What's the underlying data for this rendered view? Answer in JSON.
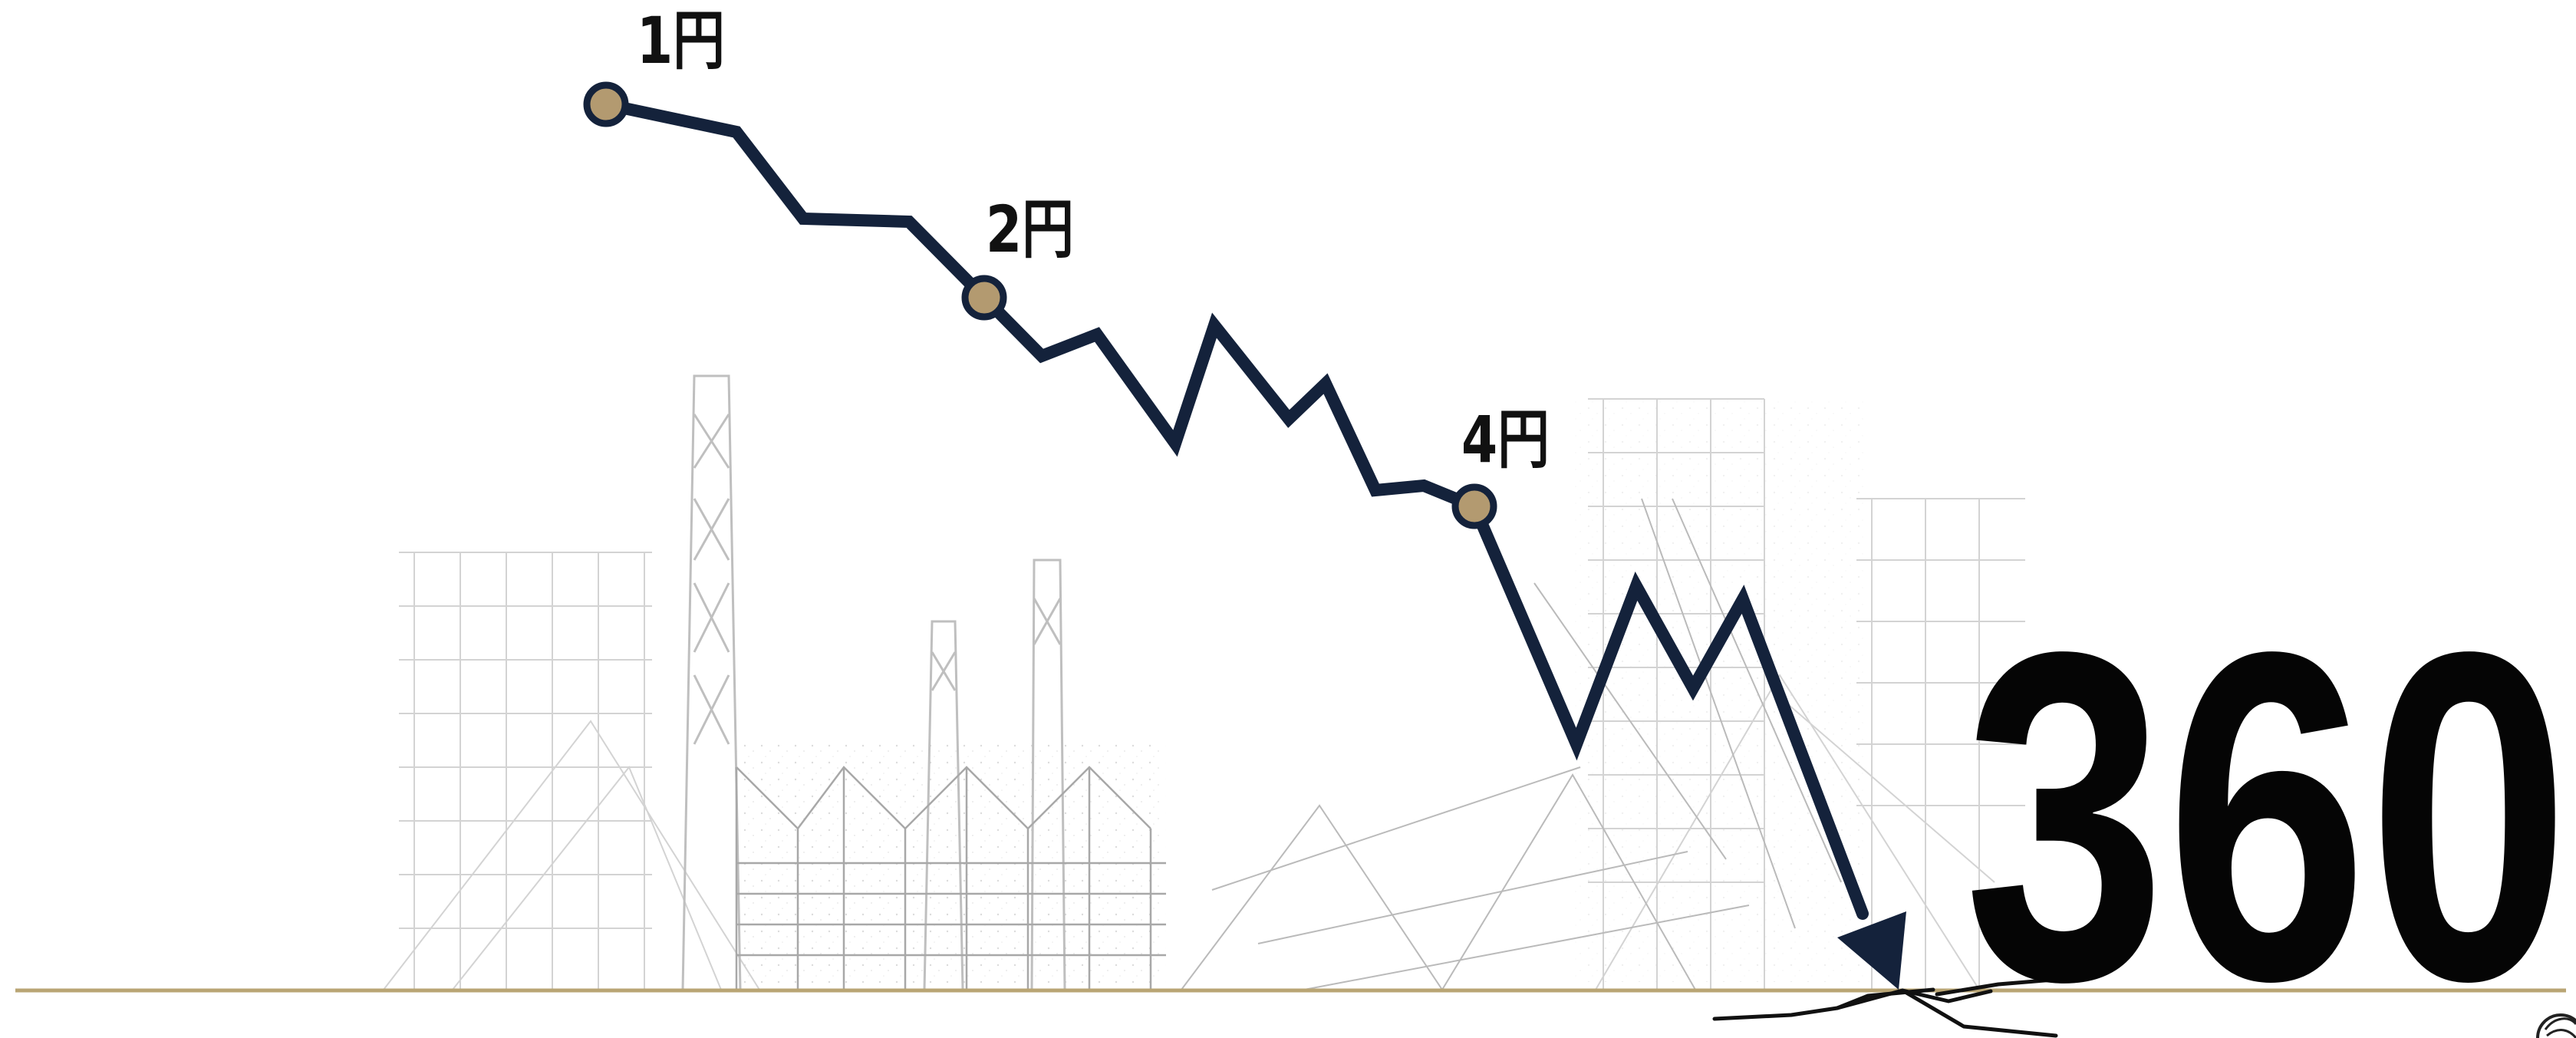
{
  "chart_data": {
    "type": "line",
    "title": "",
    "xlabel": "",
    "ylabel": "",
    "grid": false,
    "legend": "none",
    "labels": [
      "1円",
      "2円",
      "4円"
    ],
    "series": [
      {
        "values": [
          1,
          2,
          4
        ]
      }
    ],
    "big_value": "360",
    "colors": {
      "line": "#14223b",
      "marker_fill": "#b39a70",
      "marker_stroke": "#14223b",
      "ground": "#b9a574",
      "big_value": "#050505",
      "background_sketch": "#cfcfcf"
    }
  }
}
